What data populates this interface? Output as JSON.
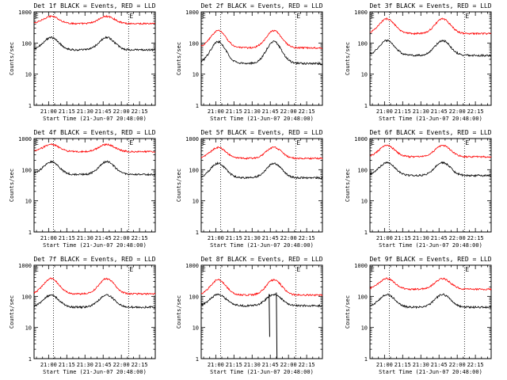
{
  "chart_data": {
    "type": "line",
    "x_tick_labels": [
      "21:00",
      "21:15",
      "21:30",
      "21:45",
      "22:00",
      "22:15"
    ],
    "x_ticks_minutes": [
      12,
      27,
      42,
      57,
      72,
      87
    ],
    "x_range_minutes": [
      0,
      100
    ],
    "y_scale": "log",
    "ylim": [
      1,
      1000
    ],
    "y_tick_labels": [
      "1",
      "10",
      "100",
      "1000"
    ],
    "ylabel": "Counts/sec",
    "xlabel": "Start Time (21-Jun-07 20:48:00)",
    "reference_lines_minutes": [
      16,
      78
    ],
    "reference_line_marks": [
      {
        "minute": 0,
        "label": "E"
      },
      {
        "minute": 78,
        "label": "E"
      }
    ],
    "series_colors": {
      "events": "#000000",
      "lld": "#ff0000"
    },
    "series_names": [
      "BLACK = Events",
      "RED = LLD"
    ],
    "panels": [
      {
        "title": "Det 1f BLACK = Events, RED = LLD",
        "red_base": 420,
        "red_peak": 720,
        "black_base": 60,
        "black_peak": 150,
        "dip_depth": 0.0
      },
      {
        "title": "Det 2f BLACK = Events, RED = LLD",
        "red_base": 70,
        "red_peak": 250,
        "black_base": 22,
        "black_peak": 110,
        "dip_depth": 0.0
      },
      {
        "title": "Det 3f BLACK = Events, RED = LLD",
        "red_base": 200,
        "red_peak": 600,
        "black_base": 40,
        "black_peak": 120,
        "dip_depth": 0.0
      },
      {
        "title": "Det 4f BLACK = Events, RED = LLD",
        "red_base": 380,
        "red_peak": 650,
        "black_base": 70,
        "black_peak": 180,
        "dip_depth": 0.0
      },
      {
        "title": "Det 5f BLACK = Events, RED = LLD",
        "red_base": 230,
        "red_peak": 520,
        "black_base": 55,
        "black_peak": 160,
        "dip_depth": 0.0
      },
      {
        "title": "Det 6f BLACK = Events, RED = LLD",
        "red_base": 260,
        "red_peak": 600,
        "black_base": 65,
        "black_peak": 170,
        "dip_depth": 0.0
      },
      {
        "title": "Det 7f BLACK = Events, RED = LLD",
        "red_base": 120,
        "red_peak": 370,
        "black_base": 45,
        "black_peak": 110,
        "dip_depth": 0.0
      },
      {
        "title": "Det 8f BLACK = Events, RED = LLD",
        "red_base": 110,
        "red_peak": 340,
        "black_base": 50,
        "black_peak": 115,
        "dip_depth": 1.0
      },
      {
        "title": "Det 9f BLACK = Events, RED = LLD",
        "red_base": 170,
        "red_peak": 370,
        "black_base": 45,
        "black_peak": 115,
        "dip_depth": 0.0
      }
    ]
  }
}
